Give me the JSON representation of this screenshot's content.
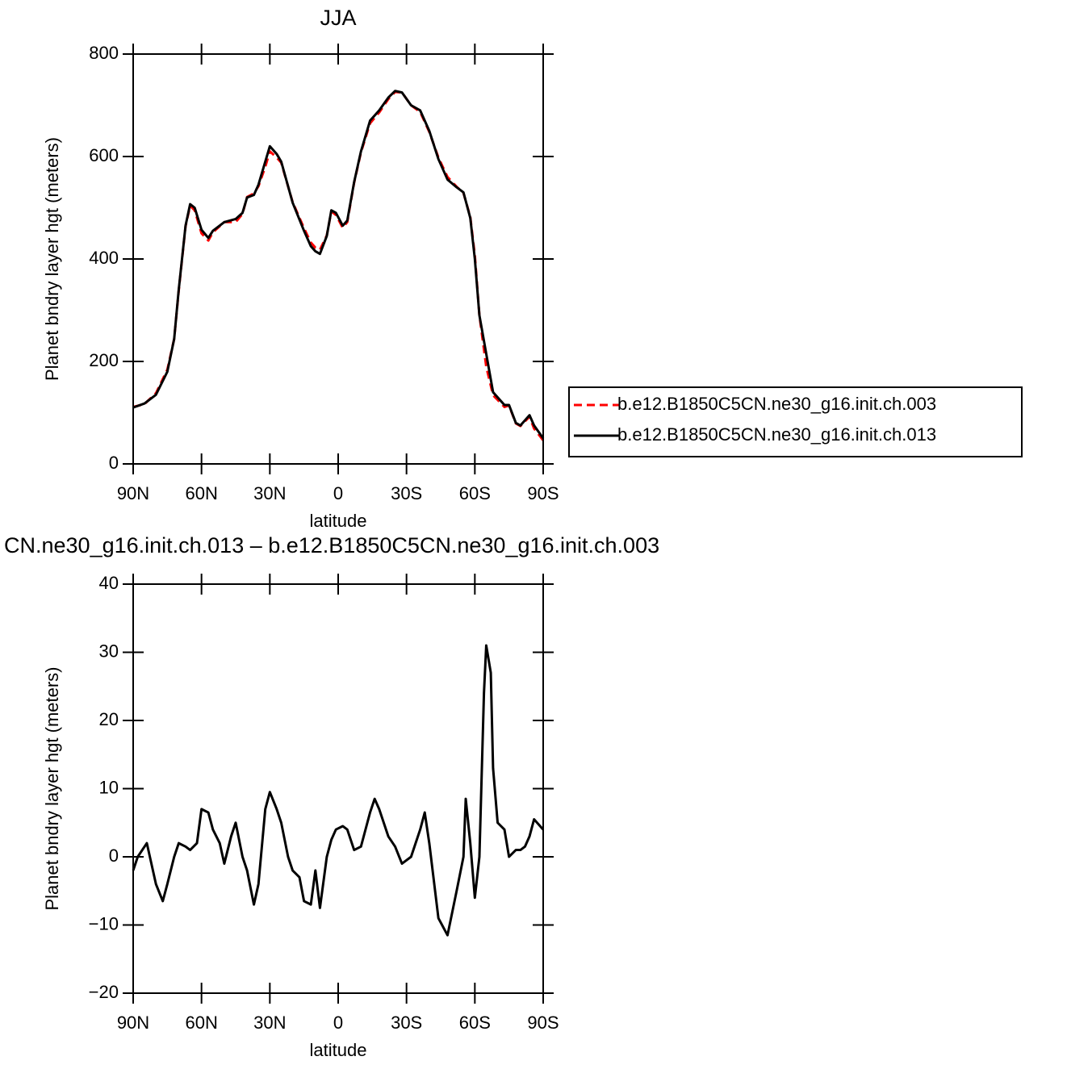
{
  "chart_data": [
    {
      "type": "line",
      "title": "JJA",
      "ylabel": "Planet bndry layer hgt (meters)",
      "xlabel": "latitude",
      "x": [
        90,
        85,
        80,
        75,
        72,
        70,
        67,
        65,
        63,
        60,
        57,
        55,
        50,
        45,
        42,
        40,
        37,
        35,
        32,
        30,
        27,
        25,
        20,
        15,
        12,
        10,
        8,
        5,
        3,
        1,
        -2,
        -4,
        -7,
        -10,
        -14,
        -18,
        -22,
        -25,
        -28,
        -32,
        -36,
        -40,
        -44,
        -48,
        -52,
        -55,
        -58,
        -60,
        -62,
        -65,
        -68,
        -70,
        -73,
        -75,
        -78,
        -80,
        -82,
        -84,
        -86,
        -90
      ],
      "xlim": [
        90,
        -90
      ],
      "xticks": [
        {
          "value": 90,
          "label": "90N"
        },
        {
          "value": 60,
          "label": "60N"
        },
        {
          "value": 30,
          "label": "30N"
        },
        0,
        {
          "value": -30,
          "label": "30S"
        },
        {
          "value": -60,
          "label": "60S"
        },
        {
          "value": -90,
          "label": "90S"
        }
      ],
      "ylim": [
        0,
        800
      ],
      "yticks": [
        0,
        200,
        400,
        600,
        800
      ],
      "legend": "right",
      "series": [
        {
          "name": "b.e12.B1850C5CN.ne30_g16.init.ch.003",
          "color": "#ff0000",
          "dash": true,
          "values": [
            111,
            117,
            138,
            184,
            244,
            338,
            464,
            504,
            495,
            450,
            436,
            452,
            472,
            472,
            488,
            521,
            528,
            542,
            580,
            610,
            598,
            588,
            511,
            460,
            432,
            422,
            418,
            446,
            493,
            486,
            461,
            472,
            549,
            608,
            665,
            686,
            712,
            726,
            725,
            700,
            687,
            648,
            598,
            560,
            541,
            529,
            482,
            407,
            290,
            190,
            134,
            125,
            111,
            114,
            79,
            74,
            83,
            92,
            69,
            46
          ]
        },
        {
          "name": "b.e12.B1850C5CN.ne30_g16.init.ch.013",
          "color": "#000000",
          "dash": false,
          "values": [
            110,
            118,
            135,
            180,
            244,
            340,
            465,
            507,
            500,
            457,
            441,
            455,
            472,
            478,
            490,
            520,
            525,
            545,
            590,
            620,
            605,
            590,
            510,
            455,
            425,
            415,
            410,
            445,
            495,
            490,
            465,
            475,
            550,
            610,
            670,
            690,
            715,
            728,
            725,
            700,
            690,
            650,
            595,
            555,
            540,
            530,
            480,
            400,
            290,
            215,
            140,
            130,
            115,
            115,
            80,
            75,
            85,
            95,
            75,
            50
          ]
        }
      ]
    },
    {
      "type": "line",
      "title": "CN.ne30_g16.init.ch.013 – b.e12.B1850C5CN.ne30_g16.init.ch.003",
      "ylabel": "Planet bndry layer hgt (meters)",
      "xlabel": "latitude",
      "x": [
        90,
        88,
        84,
        80,
        77,
        75,
        72,
        70,
        67,
        65,
        62,
        60,
        57,
        55,
        52,
        50,
        47,
        45,
        42,
        40,
        37,
        35,
        32,
        30,
        27,
        25,
        22,
        20,
        17,
        15,
        12,
        10,
        8,
        5,
        3,
        1,
        -2,
        -4,
        -7,
        -10,
        -14,
        -16,
        -18,
        -22,
        -25,
        -28,
        -32,
        -36,
        -38,
        -40,
        -44,
        -48,
        -52,
        -55,
        -56,
        -58,
        -60,
        -62,
        -64,
        -65,
        -67,
        -68,
        -70,
        -73,
        -75,
        -78,
        -80,
        -82,
        -84,
        -86,
        -90
      ],
      "xlim": [
        90,
        -90
      ],
      "xticks": [
        {
          "value": 90,
          "label": "90N"
        },
        {
          "value": 60,
          "label": "60N"
        },
        {
          "value": 30,
          "label": "30N"
        },
        0,
        {
          "value": -30,
          "label": "30S"
        },
        {
          "value": -60,
          "label": "60S"
        },
        {
          "value": -90,
          "label": "90S"
        }
      ],
      "ylim": [
        -20,
        40
      ],
      "yticks": [
        {
          "value": -20,
          "label": "−20"
        },
        {
          "value": -10,
          "label": "−10"
        },
        0,
        10,
        20,
        30,
        40
      ],
      "series": [
        {
          "color": "#000000",
          "dash": false,
          "values": [
            -2,
            0,
            2,
            -4,
            -6.5,
            -4,
            0,
            2,
            1.5,
            1,
            2,
            7,
            6.5,
            4,
            2,
            -1,
            3,
            5,
            0,
            -2,
            -7,
            -4,
            7,
            9.5,
            7,
            5,
            0,
            -2,
            -3,
            -6.5,
            -7,
            -2,
            -7.5,
            0,
            2.5,
            4,
            4.5,
            4,
            1,
            1.5,
            6.5,
            8.5,
            7,
            3,
            1.5,
            -1,
            0,
            4,
            6.5,
            2,
            -9,
            -11.5,
            -5,
            0,
            8.5,
            2,
            -6,
            0,
            24,
            31,
            27,
            13,
            5,
            4,
            0,
            1,
            1,
            1.5,
            3,
            5.5,
            4
          ]
        }
      ]
    }
  ]
}
